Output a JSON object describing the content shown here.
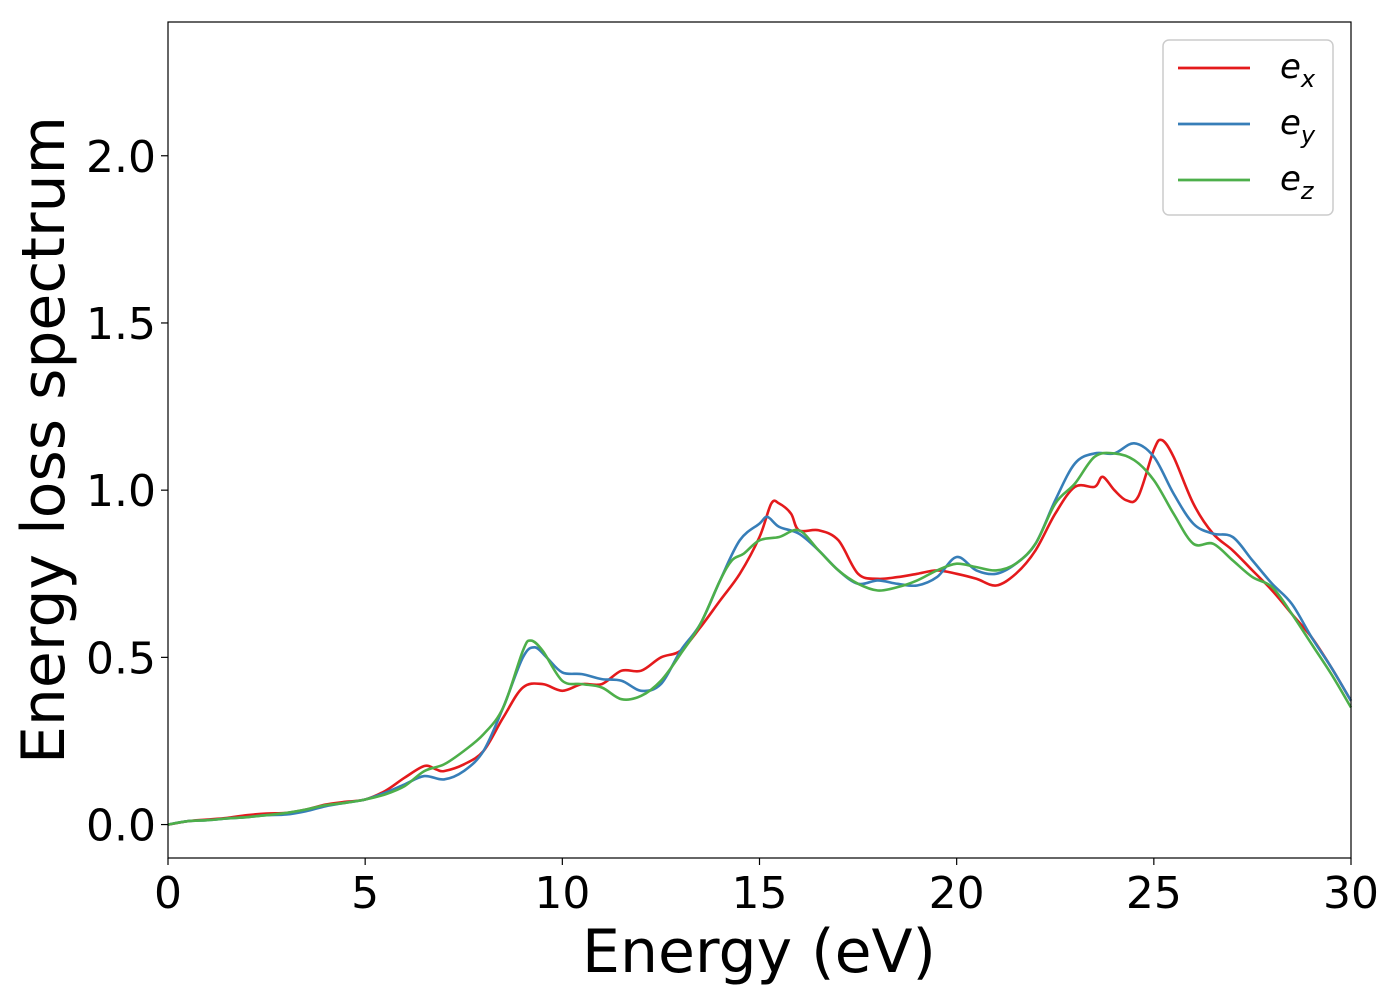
{
  "chart_data": {
    "type": "line",
    "xlabel": "Energy (eV)",
    "ylabel": "Energy loss spectrum",
    "xlim": [
      0,
      30
    ],
    "ylim": [
      -0.1,
      2.4
    ],
    "xticks": [
      0,
      5,
      10,
      15,
      20,
      25,
      30
    ],
    "yticks": [
      0.0,
      0.5,
      1.0,
      1.5,
      2.0
    ],
    "xtick_labels": [
      "0",
      "5",
      "10",
      "15",
      "20",
      "25",
      "30"
    ],
    "ytick_labels": [
      "0.0",
      "0.5",
      "1.0",
      "1.5",
      "2.0"
    ],
    "grid": false,
    "legend_position": "top-right",
    "series": [
      {
        "name": "e_x",
        "label_base": "e",
        "label_sub": "x",
        "color": "#e41a1c",
        "x": [
          0,
          0.5,
          1,
          1.5,
          2,
          2.5,
          3,
          3.5,
          4,
          4.5,
          5,
          5.5,
          6,
          6.5,
          6.8,
          7,
          7.5,
          8,
          8.5,
          9,
          9.5,
          10,
          10.5,
          11,
          11.5,
          12,
          12.5,
          13,
          13.5,
          14,
          14.5,
          15,
          15.3,
          15.5,
          15.8,
          16,
          16.5,
          17,
          17.5,
          18,
          18.5,
          19,
          19.5,
          20,
          20.5,
          21,
          21.5,
          22,
          22.5,
          23,
          23.5,
          23.7,
          24,
          24.3,
          24.6,
          25,
          25.2,
          25.5,
          26,
          26.5,
          27,
          27.5,
          28,
          28.5,
          29,
          29.5,
          30
        ],
        "y": [
          0.0,
          0.01,
          0.015,
          0.02,
          0.028,
          0.033,
          0.035,
          0.045,
          0.06,
          0.068,
          0.075,
          0.1,
          0.14,
          0.175,
          0.165,
          0.16,
          0.18,
          0.22,
          0.32,
          0.41,
          0.42,
          0.4,
          0.42,
          0.42,
          0.46,
          0.46,
          0.5,
          0.52,
          0.59,
          0.67,
          0.75,
          0.86,
          0.96,
          0.96,
          0.93,
          0.88,
          0.88,
          0.85,
          0.75,
          0.735,
          0.74,
          0.75,
          0.76,
          0.75,
          0.735,
          0.715,
          0.75,
          0.82,
          0.93,
          1.01,
          1.01,
          1.04,
          1.0,
          0.97,
          0.98,
          1.12,
          1.15,
          1.1,
          0.96,
          0.87,
          0.82,
          0.76,
          0.7,
          0.63,
          0.56,
          0.47,
          0.37
        ]
      },
      {
        "name": "e_y",
        "label_base": "e",
        "label_sub": "y",
        "color": "#377eb8",
        "x": [
          0,
          0.5,
          1,
          1.5,
          2,
          2.5,
          3,
          3.5,
          4,
          4.5,
          5,
          5.5,
          6,
          6.5,
          7,
          7.5,
          8,
          8.5,
          9,
          9.3,
          9.6,
          10,
          10.5,
          11,
          11.5,
          12,
          12.5,
          13,
          13.5,
          14,
          14.5,
          15,
          15.2,
          15.5,
          16,
          16.5,
          17,
          17.5,
          18,
          18.5,
          19,
          19.5,
          20,
          20.5,
          21,
          21.5,
          22,
          22.5,
          23,
          23.5,
          24,
          24.5,
          25,
          25.5,
          26,
          26.5,
          27,
          27.5,
          28,
          28.5,
          29,
          29.5,
          30
        ],
        "y": [
          0.0,
          0.01,
          0.013,
          0.018,
          0.022,
          0.028,
          0.03,
          0.04,
          0.055,
          0.065,
          0.075,
          0.095,
          0.12,
          0.145,
          0.135,
          0.16,
          0.22,
          0.35,
          0.5,
          0.53,
          0.5,
          0.455,
          0.45,
          0.435,
          0.43,
          0.4,
          0.42,
          0.52,
          0.6,
          0.73,
          0.85,
          0.9,
          0.92,
          0.89,
          0.87,
          0.82,
          0.76,
          0.72,
          0.73,
          0.72,
          0.715,
          0.74,
          0.8,
          0.76,
          0.75,
          0.78,
          0.84,
          0.97,
          1.08,
          1.11,
          1.11,
          1.14,
          1.1,
          0.99,
          0.9,
          0.87,
          0.86,
          0.79,
          0.72,
          0.66,
          0.56,
          0.47,
          0.37
        ]
      },
      {
        "name": "e_z",
        "label_base": "e",
        "label_sub": "z",
        "color": "#4daf4a",
        "x": [
          0,
          0.5,
          1,
          1.5,
          2,
          2.5,
          3,
          3.5,
          4,
          4.5,
          5,
          5.5,
          6,
          6.5,
          7,
          7.5,
          8,
          8.5,
          9,
          9.2,
          9.5,
          10,
          10.5,
          11,
          11.5,
          12,
          12.5,
          13,
          13.5,
          14,
          14.3,
          14.6,
          15,
          15.5,
          16,
          16.5,
          17,
          17.5,
          18,
          18.5,
          19,
          19.5,
          20,
          20.5,
          21,
          21.5,
          22,
          22.5,
          23,
          23.5,
          24,
          24.5,
          25,
          25.5,
          26,
          26.5,
          27,
          27.5,
          28,
          28.5,
          29,
          29.5,
          30
        ],
        "y": [
          0.0,
          0.01,
          0.013,
          0.018,
          0.022,
          0.028,
          0.035,
          0.045,
          0.058,
          0.065,
          0.075,
          0.09,
          0.115,
          0.16,
          0.18,
          0.22,
          0.27,
          0.35,
          0.52,
          0.55,
          0.52,
          0.43,
          0.42,
          0.41,
          0.375,
          0.385,
          0.43,
          0.51,
          0.6,
          0.73,
          0.79,
          0.81,
          0.85,
          0.86,
          0.88,
          0.82,
          0.76,
          0.72,
          0.7,
          0.71,
          0.73,
          0.76,
          0.78,
          0.77,
          0.76,
          0.78,
          0.84,
          0.96,
          1.02,
          1.1,
          1.11,
          1.09,
          1.03,
          0.93,
          0.84,
          0.84,
          0.79,
          0.74,
          0.71,
          0.63,
          0.54,
          0.45,
          0.35
        ]
      }
    ]
  }
}
